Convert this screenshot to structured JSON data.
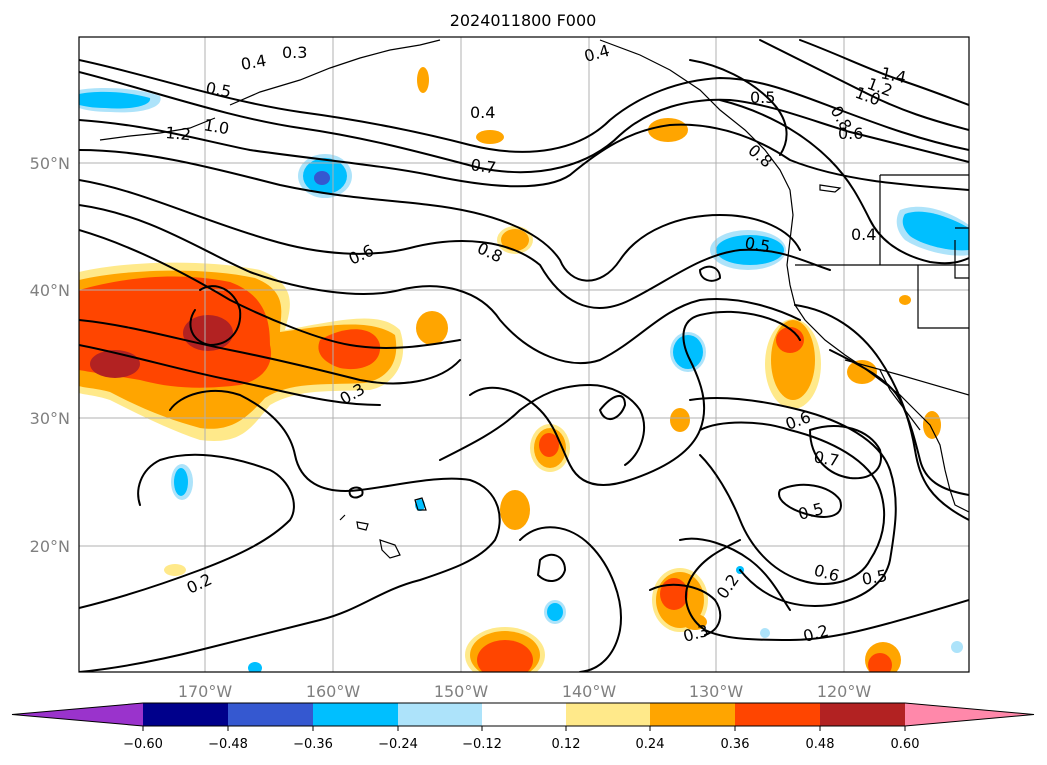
{
  "title": "2024011800 F000",
  "map": {
    "latitudes": [
      "50°N",
      "40°N",
      "30°N",
      "20°N"
    ],
    "longitudes": [
      "170°W",
      "160°W",
      "150°W",
      "140°W",
      "130°W",
      "120°W"
    ]
  },
  "colorbar": {
    "ticks": [
      "−0.60",
      "−0.48",
      "−0.36",
      "−0.24",
      "−0.12",
      "0.12",
      "0.24",
      "0.36",
      "0.48",
      "0.60"
    ],
    "colors": [
      "#9a33cc",
      "#00008b",
      "#3558d0",
      "#00bfff",
      "#ade3fa",
      "#ffffff",
      "#ffe98a",
      "#ffa500",
      "#ff4500",
      "#b22222",
      "#ff88aa"
    ]
  },
  "contour_labels": [
    "0.3",
    "0.4",
    "0.5",
    "1.2",
    "1.0",
    "0.4",
    "0.4",
    "0.7",
    "0.6",
    "0.8",
    "0.5",
    "0.4",
    "1.4",
    "1.2",
    "1.0",
    "0.8",
    "0.6",
    "0.8",
    "0.5",
    "0.3",
    "0.6",
    "0.7",
    "0.5",
    "0.6",
    "0.5",
    "0.2",
    "0.2",
    "0.3",
    "0.2"
  ]
}
